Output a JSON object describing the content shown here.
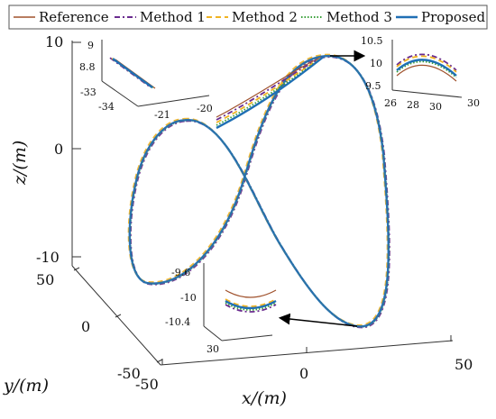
{
  "chart_data": {
    "type": "line",
    "projection": "3d",
    "legend": {
      "placement": "top",
      "entries": [
        "Reference",
        "Method 1",
        "Method 2",
        "Method 3",
        "Proposed"
      ]
    },
    "series": [
      {
        "name": "Reference",
        "color": "#a0522d",
        "style": "solid"
      },
      {
        "name": "Method 1",
        "color": "#6a2c8f",
        "style": "dash-dot"
      },
      {
        "name": "Method 2",
        "color": "#f0b323",
        "style": "dashed"
      },
      {
        "name": "Method 3",
        "color": "#3aa03a",
        "style": "dotted"
      },
      {
        "name": "Proposed",
        "color": "#1f6fb4",
        "style": "solid-thick"
      }
    ],
    "axes": {
      "x": {
        "label": "x/(m)",
        "ticks": [
          "-50",
          "0",
          "50"
        ],
        "range": [
          -50,
          50
        ]
      },
      "y": {
        "label": "y/(m)",
        "ticks": [
          "-50",
          "0",
          "50"
        ],
        "range": [
          -50,
          50
        ]
      },
      "z": {
        "label": "z/(m)",
        "ticks": [
          "-10",
          "0",
          "10"
        ],
        "range": [
          -10,
          10
        ]
      }
    },
    "insets": [
      {
        "id": "top-left",
        "ticks": [
          "9",
          "8.8",
          "-33",
          "-34",
          "-21",
          "-20"
        ]
      },
      {
        "id": "top-right",
        "ticks": [
          "10.5",
          "10",
          "9.5",
          "26",
          "28",
          "30",
          "30"
        ]
      },
      {
        "id": "bottom",
        "ticks": [
          "-9.6",
          "-10",
          "-10.4",
          "30"
        ]
      }
    ],
    "grid": false
  }
}
